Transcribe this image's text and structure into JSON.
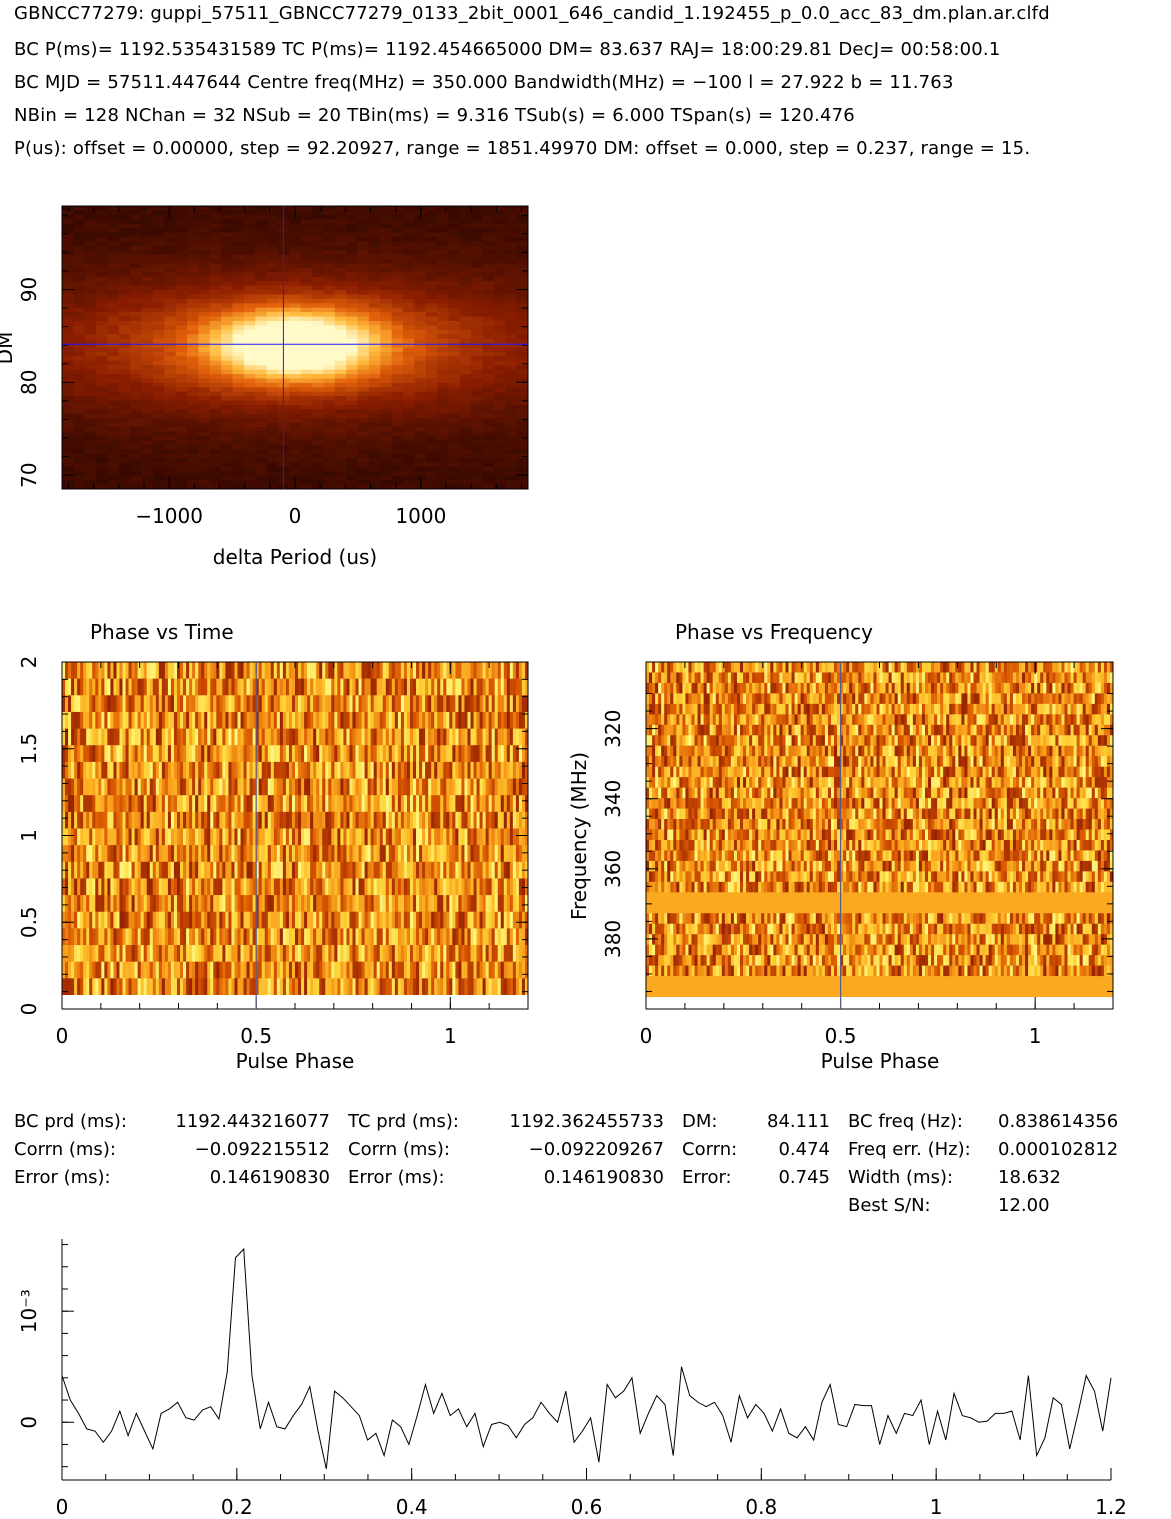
{
  "header": {
    "filename": "GBNCC77279: guppi_57511_GBNCC77279_0133_2bit_0001_646_candid_1.192455_p_0.0_acc_83_dm.plan.ar.clfd",
    "line1": "BC P(ms)= 1192.535431589 TC P(ms)= 1192.454665000 DM= 83.637 RAJ= 18:00:29.81 DecJ= 00:58:00.1",
    "line2": "BC MJD = 57511.447644 Centre freq(MHz) = 350.000 Bandwidth(MHz) = −100 l = 27.922 b = 11.763",
    "line3": "NBin = 128 NChan = 32 NSub = 20 TBin(ms) = 9.316 TSub(s) = 6.000 TSpan(s) = 120.476",
    "line4": "P(us): offset = 0.00000, step = 92.20927, range = 1851.49970 DM: offset = 0.000, step = 0.237, range = 15."
  },
  "stats": {
    "bc_prd_label": "BC prd (ms):",
    "bc_prd_value": "1192.443216077",
    "corrn1_label": "Corrn (ms):",
    "corrn1_value": "−0.092215512",
    "error1_label": "Error (ms):",
    "error1_value": "0.146190830",
    "tc_prd_label": "TC prd (ms):",
    "tc_prd_value": "1192.362455733",
    "corrn2_label": "Corrn (ms):",
    "corrn2_value": "−0.092209267",
    "error2_label": "Error (ms):",
    "error2_value": "0.146190830",
    "dm_label": "DM:",
    "dm_value": "84.111",
    "corrn3_label": "Corrn:",
    "corrn3_value": "0.474",
    "error3_label": "Error:",
    "error3_value": "0.745",
    "bc_freq_label": "BC freq (Hz):",
    "bc_freq_value": "0.838614356",
    "freq_err_label": "Freq err. (Hz):",
    "freq_err_value": "0.000102812",
    "width_label": "Width (ms):",
    "width_value": "18.632",
    "snr_label": "Best S/N:",
    "snr_value": "12.00"
  },
  "colors": {
    "heat_low": "#1a0000",
    "heat_mid": "#d94a00",
    "heat_high": "#fff6c0",
    "crosshair": "#1a1aff",
    "line": "#000000"
  },
  "chart_data": [
    {
      "type": "heatmap",
      "title": "",
      "xlabel": "delta Period (us)",
      "ylabel": "DM",
      "xlim": [
        -1851.5,
        1851.5
      ],
      "ylim": [
        68.5,
        99
      ],
      "xticks": [
        -1000,
        0,
        1000
      ],
      "xtick_labels": [
        "−1000",
        "0",
        "1000"
      ],
      "yticks": [
        70,
        80,
        90
      ],
      "ytick_labels": [
        "70",
        "80",
        "90"
      ],
      "crosshair": {
        "x": -92.2,
        "y": 84.1
      }
    },
    {
      "type": "heatmap",
      "title": "Phase vs Time",
      "xlabel": "",
      "ylabel": "",
      "xlim": [
        0,
        1.2
      ],
      "ylim": [
        0,
        2
      ],
      "xticks": [
        0,
        0.5,
        1
      ],
      "xtick_labels": [
        "0",
        "0.5",
        "1"
      ],
      "yticks": [
        0,
        0.5,
        1,
        1.5,
        2
      ],
      "ytick_labels": [
        "0",
        "0.5",
        "1",
        "1.5",
        "2"
      ],
      "marker_x": 0.5
    },
    {
      "type": "heatmap",
      "title": "Phase vs Frequency",
      "xlabel": "Pulse Phase",
      "ylabel": "Frequency (MHz)",
      "xlim": [
        0,
        1.2
      ],
      "ylim": [
        400,
        301
      ],
      "xticks": [
        0,
        0.5,
        1
      ],
      "xtick_labels": [
        "0",
        "0.5",
        "1"
      ],
      "yticks": [
        320,
        340,
        360,
        380
      ],
      "ytick_labels": [
        "320",
        "340",
        "360",
        "380"
      ],
      "marker_x": 0.5
    },
    {
      "type": "line",
      "title": "",
      "xlabel": "",
      "ylabel": "",
      "xlim": [
        0,
        1.2
      ],
      "ylim": [
        -5.2,
        16.5
      ],
      "xticks": [
        0,
        0.2,
        0.4,
        0.6,
        0.8,
        1,
        1.2
      ],
      "xtick_labels": [
        "0",
        "0.2",
        "0.4",
        "0.6",
        "0.8",
        "1",
        "1.2"
      ],
      "yticks": [
        0,
        10
      ],
      "ytick_labels": [
        "0",
        "10⁻³"
      ],
      "y": [
        4.2,
        2.0,
        0.8,
        -0.6,
        -0.8,
        -1.8,
        -0.8,
        1.0,
        -1.2,
        0.8,
        -0.8,
        -2.4,
        0.8,
        1.2,
        1.8,
        0.4,
        0.2,
        1.1,
        1.4,
        0.3,
        4.5,
        14.8,
        15.6,
        4.2,
        -0.6,
        1.8,
        -0.4,
        -0.6,
        0.6,
        1.6,
        3.2,
        -0.8,
        -4.2,
        2.8,
        2.2,
        1.4,
        0.6,
        -1.6,
        -1.0,
        -3.0,
        0.2,
        -0.4,
        -2.0,
        0.6,
        3.4,
        0.8,
        2.6,
        0.6,
        1.2,
        -0.4,
        0.8,
        -2.2,
        -0.2,
        0.0,
        -0.3,
        -1.4,
        -0.2,
        0.4,
        1.8,
        0.8,
        0.0,
        2.8,
        -1.8,
        -0.8,
        0.4,
        -3.6,
        3.4,
        2.2,
        2.8,
        4.0,
        -1.0,
        0.8,
        2.4,
        1.6,
        -3.0,
        5.0,
        2.4,
        1.8,
        1.4,
        1.8,
        0.6,
        -1.8,
        2.4,
        0.4,
        1.6,
        0.8,
        -0.8,
        1.2,
        -1.0,
        -1.4,
        -0.4,
        -1.6,
        1.8,
        3.4,
        -0.2,
        -0.4,
        1.6,
        1.5,
        1.5,
        -2.0,
        0.6,
        -1.0,
        0.8,
        0.6,
        2.0,
        -2.0,
        1.0,
        -1.6,
        2.6,
        0.6,
        0.4,
        0.0,
        0.1,
        0.8,
        0.8,
        1.0,
        -1.6,
        4.2,
        -3.0,
        -1.4,
        2.2,
        1.6,
        -2.4,
        0.8,
        4.2,
        2.8,
        -0.8,
        4.0
      ]
    }
  ]
}
